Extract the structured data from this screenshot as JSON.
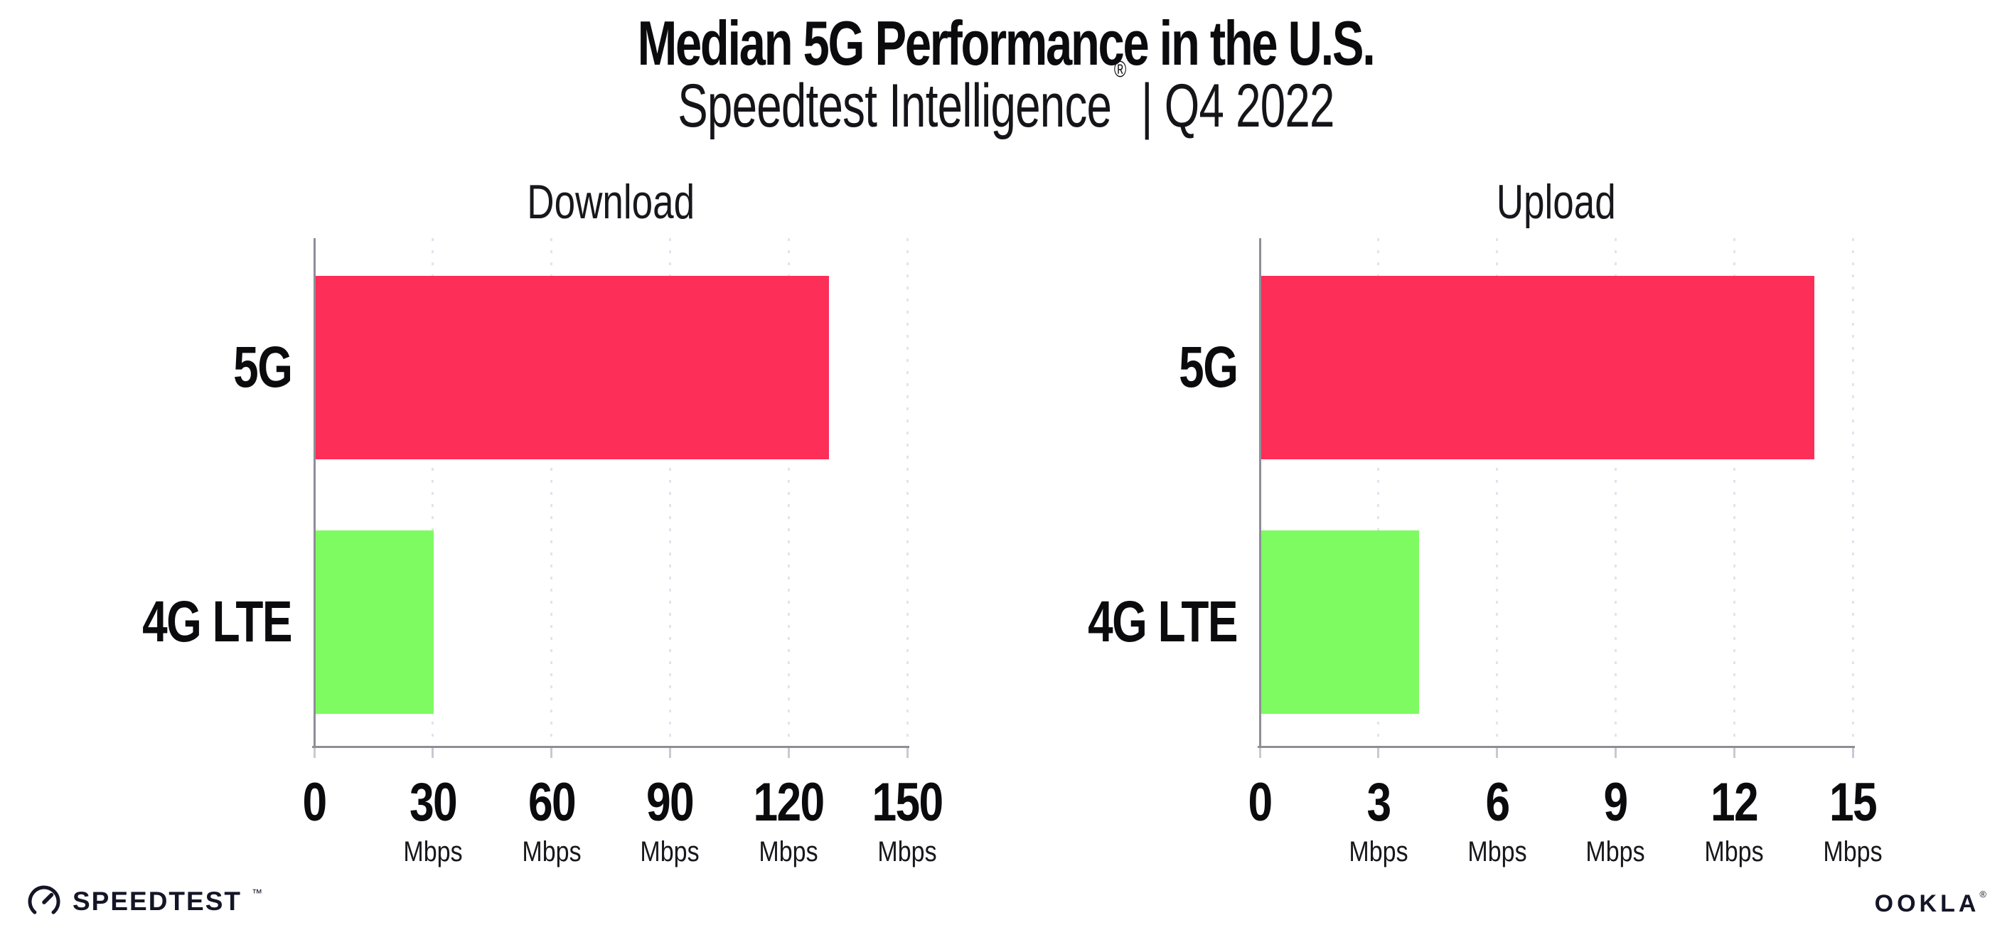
{
  "header": {
    "title": "Median 5G Performance in the U.S.",
    "subtitle_brand": "Speedtest Intelligence",
    "subtitle_reg": "®",
    "subtitle_rest": " | Q4 2022"
  },
  "colors": {
    "bar_5g": "#FD2E57",
    "bar_4g": "#7EFB61",
    "axis": "#8E8E97",
    "gridline": "#E3E3EE",
    "tick_mark": "#C9C9D3",
    "text": "#0B0B0E",
    "logo": "#141526",
    "background": "#FFFFFF"
  },
  "chart_data": [
    {
      "type": "bar",
      "orientation": "horizontal",
      "title": "Download",
      "categories": [
        "5G",
        "4G LTE"
      ],
      "values": [
        130,
        30
      ],
      "unit": "Mbps",
      "xlabel": "",
      "ylabel": "",
      "xlim": [
        0,
        150
      ],
      "xticks": [
        0,
        30,
        60,
        90,
        120,
        150
      ],
      "bar_colors": [
        "#FD2E57",
        "#7EFB61"
      ],
      "grid": "vertical-dotted",
      "legend": "none"
    },
    {
      "type": "bar",
      "orientation": "horizontal",
      "title": "Upload",
      "categories": [
        "5G",
        "4G LTE"
      ],
      "values": [
        14,
        4
      ],
      "unit": "Mbps",
      "xlabel": "",
      "ylabel": "",
      "xlim": [
        0,
        15
      ],
      "xticks": [
        0,
        3,
        6,
        9,
        12,
        15
      ],
      "bar_colors": [
        "#FD2E57",
        "#7EFB61"
      ],
      "grid": "vertical-dotted",
      "legend": "none"
    }
  ],
  "footer": {
    "speedtest": "SPEEDTEST",
    "speedtest_mark": "™",
    "speedtest_icon": "gauge-icon",
    "ookla": "OOKLA",
    "ookla_mark": "®"
  }
}
